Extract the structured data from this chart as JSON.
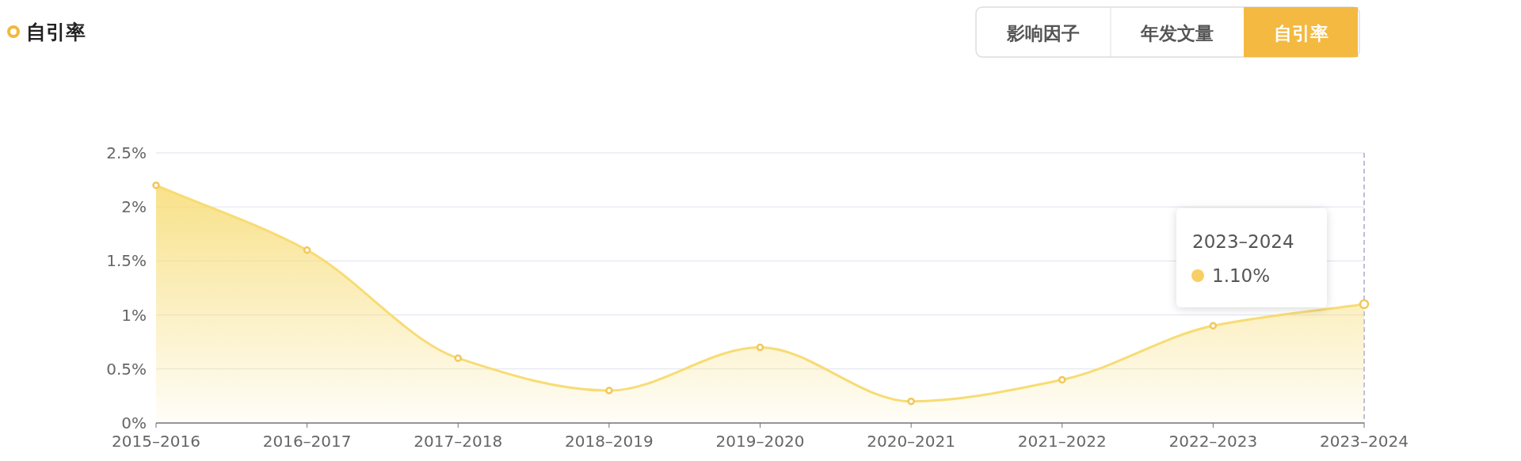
{
  "chart_data": {
    "type": "area",
    "title": "自引率",
    "categories": [
      "2015–2016",
      "2016–2017",
      "2017–2018",
      "2018–2019",
      "2019–2020",
      "2020–2021",
      "2021–2022",
      "2022–2023",
      "2023–2024"
    ],
    "series": [
      {
        "color": "#f7dc74",
        "values": [
          2.2,
          1.6,
          0.6,
          0.3,
          0.7,
          0.2,
          0.4,
          0.9,
          1.1
        ]
      }
    ],
    "ylim": [
      0,
      2.5
    ],
    "yticks": [
      {
        "value": 0,
        "label": "0%"
      },
      {
        "value": 0.5,
        "label": "0.5%"
      },
      {
        "value": 1,
        "label": "1%"
      },
      {
        "value": 1.5,
        "label": "1.5%"
      },
      {
        "value": 2,
        "label": "2%"
      },
      {
        "value": 2.5,
        "label": "2.5%"
      }
    ],
    "grid": "y",
    "marker": "circle",
    "ref_lines": [
      {
        "axis": "x",
        "value": "2023–2024",
        "color": "#a9a9c8",
        "line_style": "dashed"
      }
    ],
    "annotations": [
      "影响因子",
      "年发文量",
      "自引率",
      "2023–2024",
      "1.10%"
    ]
  }
}
